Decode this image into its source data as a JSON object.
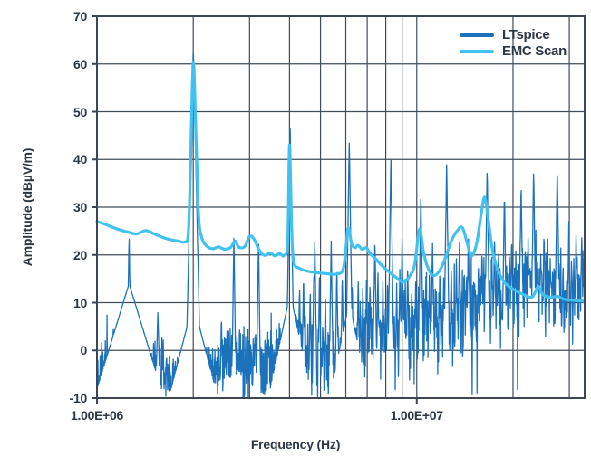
{
  "figure": {
    "background": "#ffffff",
    "text_color": "#2b3745",
    "grid_color": "#414c5b",
    "border_color": "#3c4654"
  },
  "chart_data": {
    "type": "line",
    "title": "",
    "xlabel": "Frequency (Hz)",
    "ylabel": "Amplitude (dBµV/m)",
    "x_scale": "log",
    "x_range_hz": [
      1000000,
      33500000
    ],
    "x_tick_labels": [
      {
        "value_mhz": 1.0,
        "label": "1.00E+06"
      },
      {
        "value_mhz": 10.0,
        "label": "1.00E+07"
      }
    ],
    "x_grid_mhz": [
      2,
      3,
      4,
      5,
      6,
      7,
      8,
      9,
      10,
      20,
      30
    ],
    "y_range_db": [
      -10,
      70
    ],
    "y_ticks_db": [
      70,
      60,
      50,
      40,
      30,
      20,
      10,
      0,
      -10
    ],
    "grid": {
      "horizontal_every_db": 10,
      "vertical_minor_log": true,
      "legend_position": "top-right"
    },
    "legend": {
      "items": [
        {
          "label": "LTspice",
          "color": "#1b72bb"
        },
        {
          "label": "EMC Scan",
          "color": "#41c1f0"
        }
      ]
    },
    "series": [
      {
        "name": "LTspice",
        "color": "#1b72bb",
        "style": "noisy-spectrum",
        "peaks_mhz_db_slope": [
          [
            1.26,
            24.0,
            4500
          ],
          [
            1.55,
            8.0,
            2500
          ],
          [
            2.0,
            63.5,
            3000
          ],
          [
            2.45,
            7.5,
            4000
          ],
          [
            2.68,
            23.6,
            4800
          ],
          [
            3.2,
            23.2,
            4800
          ],
          [
            4.02,
            47.0,
            4200
          ],
          [
            4.8,
            23.0,
            4800
          ],
          [
            5.4,
            23.2,
            4800
          ],
          [
            6.15,
            44.0,
            4500
          ],
          [
            7.4,
            23.6,
            4800
          ],
          [
            8.3,
            40.4,
            4800
          ],
          [
            9.0,
            23.7,
            4800
          ],
          [
            10.3,
            33.2,
            4800
          ],
          [
            11.2,
            22.8,
            4800
          ],
          [
            12.4,
            39.5,
            4800
          ],
          [
            13.6,
            23.2,
            4800
          ],
          [
            14.5,
            24.0,
            4800
          ],
          [
            16.6,
            38.3,
            4800
          ],
          [
            17.5,
            23.5,
            4800
          ],
          [
            18.8,
            33.2,
            4800
          ],
          [
            19.8,
            24.0,
            4800
          ],
          [
            21.2,
            35.1,
            4800
          ],
          [
            22.3,
            24.0,
            4800
          ],
          [
            23.2,
            38.0,
            4800
          ],
          [
            25.0,
            25.0,
            4800
          ],
          [
            27.5,
            38.7,
            4800
          ],
          [
            29.9,
            27.0,
            4800
          ],
          [
            31.5,
            25.0,
            4800
          ],
          [
            32.8,
            24.5,
            4800
          ]
        ],
        "wide_humps_mhz_db_slope": [
          [
            1.26,
            14.0,
            220
          ],
          [
            2.0,
            10.0,
            260
          ],
          [
            4.02,
            12.0,
            320
          ],
          [
            6.15,
            10.0,
            320
          ]
        ],
        "comb": {
          "f_start": 4.3,
          "f_end": 33.4,
          "h0": 13,
          "h1": 19,
          "h_jitter": 4,
          "step0": 0.022,
          "step1": 0.009
        },
        "noise": {
          "seed": 12,
          "samples": 1700,
          "floor_db": -9.9,
          "regions": [
            {
              "f1": 2.4,
              "min": -9.5,
              "max": 1.0,
              "bias": 1.3,
              "p_hi": 0.06,
              "hi": 6
            },
            {
              "f1": 4.1,
              "min": -9.0,
              "max": 2.5,
              "bias": 1.2,
              "p_hi": 0.1,
              "hi": 7
            },
            {
              "f1": 6.5,
              "min": -8.5,
              "max": 7.0,
              "bias": 0.9,
              "p_hi": 0.12,
              "hi": 6
            },
            {
              "f1": 10.0,
              "min": -7.5,
              "max": 8.5,
              "bias": 0.8,
              "p_hi": 0.12,
              "hi": 7
            },
            {
              "f1": 14.0,
              "min": -6.0,
              "max": 11.0,
              "bias": 0.7,
              "p_hi": 0.15,
              "hi": 8
            },
            {
              "f1": 20.0,
              "min": -4.0,
              "max": 14.0,
              "bias": 0.55,
              "p_hi": 0.2,
              "hi": 8
            },
            {
              "f1": 34.0,
              "min": -3.0,
              "max": 16.0,
              "bias": 0.45,
              "p_hi": 0.25,
              "hi": 8
            }
          ]
        }
      },
      {
        "name": "EMC Scan",
        "color": "#41c1f0",
        "style": "smooth-line",
        "points_mhz_db": [
          [
            1.0,
            27.0
          ],
          [
            1.08,
            26.2
          ],
          [
            1.16,
            25.4
          ],
          [
            1.25,
            24.8
          ],
          [
            1.33,
            24.4
          ],
          [
            1.42,
            25.1
          ],
          [
            1.5,
            24.5
          ],
          [
            1.6,
            23.7
          ],
          [
            1.7,
            23.2
          ],
          [
            1.8,
            22.9
          ],
          [
            1.88,
            22.7
          ],
          [
            1.93,
            24.5
          ],
          [
            1.96,
            38.0
          ],
          [
            2.0,
            60.3
          ],
          [
            2.04,
            45.0
          ],
          [
            2.08,
            28.0
          ],
          [
            2.13,
            23.5
          ],
          [
            2.2,
            21.9
          ],
          [
            2.3,
            21.3
          ],
          [
            2.4,
            21.7
          ],
          [
            2.5,
            21.2
          ],
          [
            2.62,
            21.6
          ],
          [
            2.7,
            22.9
          ],
          [
            2.78,
            21.6
          ],
          [
            2.9,
            21.8
          ],
          [
            3.0,
            23.9
          ],
          [
            3.1,
            23.3
          ],
          [
            3.22,
            20.9
          ],
          [
            3.35,
            19.9
          ],
          [
            3.48,
            20.4
          ],
          [
            3.6,
            19.8
          ],
          [
            3.72,
            20.3
          ],
          [
            3.85,
            19.9
          ],
          [
            3.95,
            23.0
          ],
          [
            4.0,
            43.0
          ],
          [
            4.06,
            26.0
          ],
          [
            4.12,
            18.6
          ],
          [
            4.3,
            17.2
          ],
          [
            4.55,
            16.6
          ],
          [
            4.85,
            16.3
          ],
          [
            5.2,
            16.1
          ],
          [
            5.6,
            16.0
          ],
          [
            5.9,
            17.3
          ],
          [
            6.1,
            25.5
          ],
          [
            6.25,
            22.4
          ],
          [
            6.4,
            21.5
          ],
          [
            6.55,
            22.0
          ],
          [
            6.75,
            21.2
          ],
          [
            6.95,
            21.5
          ],
          [
            7.15,
            20.3
          ],
          [
            7.45,
            19.1
          ],
          [
            7.8,
            17.7
          ],
          [
            8.2,
            16.4
          ],
          [
            8.65,
            15.2
          ],
          [
            9.05,
            14.3
          ],
          [
            9.45,
            15.3
          ],
          [
            9.85,
            18.0
          ],
          [
            10.2,
            25.4
          ],
          [
            10.5,
            20.5
          ],
          [
            10.85,
            17.2
          ],
          [
            11.25,
            15.7
          ],
          [
            11.7,
            16.4
          ],
          [
            12.2,
            18.8
          ],
          [
            12.8,
            22.8
          ],
          [
            13.4,
            25.1
          ],
          [
            13.9,
            25.7
          ],
          [
            14.4,
            22.3
          ],
          [
            14.85,
            19.8
          ],
          [
            15.4,
            22.5
          ],
          [
            15.9,
            28.5
          ],
          [
            16.3,
            32.1
          ],
          [
            16.7,
            28.0
          ],
          [
            17.1,
            22.5
          ],
          [
            17.6,
            18.5
          ],
          [
            18.2,
            15.8
          ],
          [
            18.9,
            14.1
          ],
          [
            19.8,
            13.0
          ],
          [
            20.8,
            12.2
          ],
          [
            21.9,
            11.5
          ],
          [
            23.0,
            11.2
          ],
          [
            24.0,
            13.4
          ],
          [
            24.7,
            11.8
          ],
          [
            26.0,
            11.1
          ],
          [
            27.5,
            11.3
          ],
          [
            29.0,
            10.7
          ],
          [
            31.0,
            10.5
          ],
          [
            33.5,
            10.3
          ]
        ]
      }
    ]
  },
  "layout_note": ""
}
